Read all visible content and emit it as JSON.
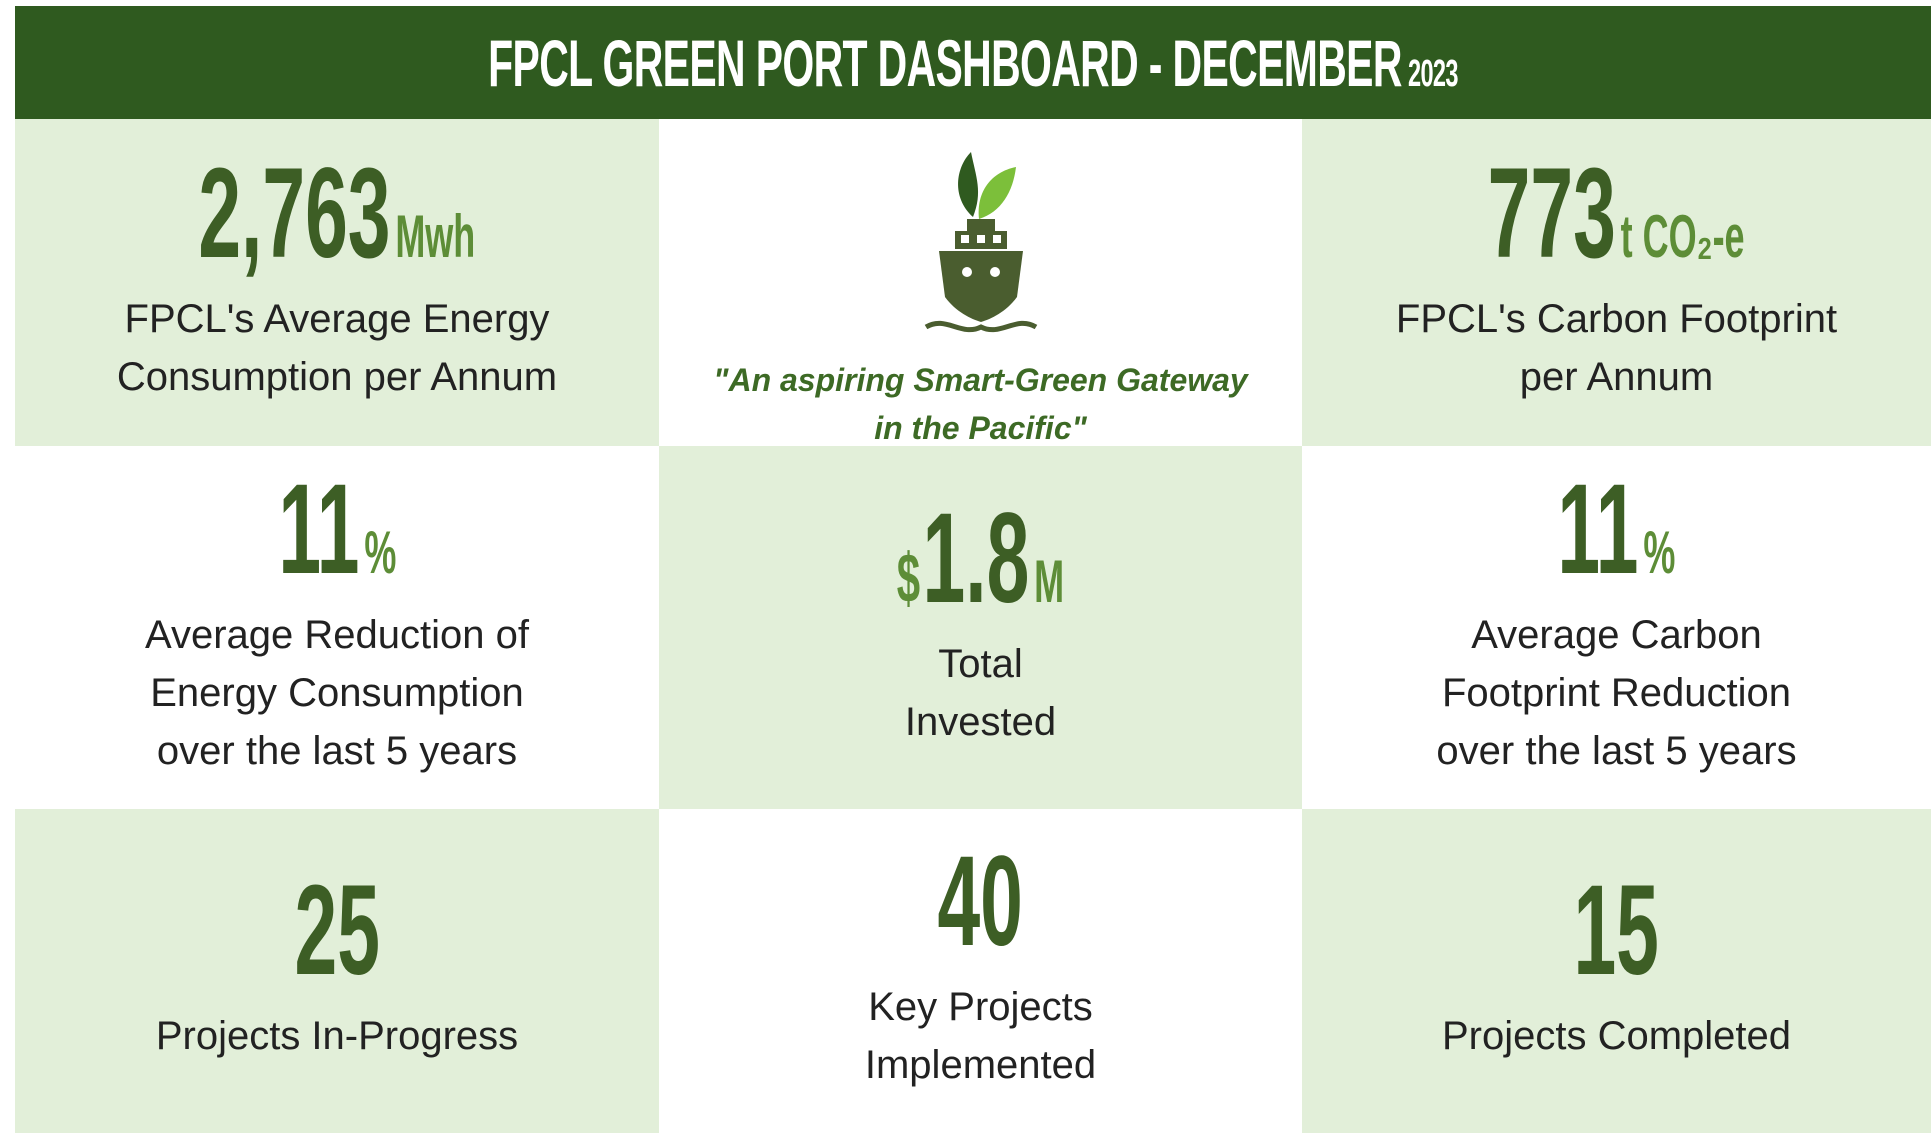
{
  "header": {
    "title": "FPCL GREEN PORT DASHBOARD - DECEMBER",
    "year": "2023"
  },
  "cells": [
    {
      "value": "2,763",
      "unit": "Mwh",
      "label": [
        "FPCL's Average Energy",
        "Consumption per Annum"
      ]
    },
    {
      "tagline": [
        "\"An aspiring Smart-Green Gateway",
        "in the Pacific\""
      ]
    },
    {
      "value": "773",
      "unit": "t CO₂-e",
      "label": [
        "FPCL's Carbon Footprint",
        "per Annum"
      ]
    },
    {
      "value": "11",
      "unit": "%",
      "label": [
        "Average Reduction of",
        "Energy Consumption",
        "over the last 5 years"
      ]
    },
    {
      "prefix": "$",
      "value": "1.8",
      "unit": "M",
      "label": [
        "Total",
        "Invested"
      ]
    },
    {
      "value": "11",
      "unit": "%",
      "label": [
        "Average Carbon",
        "Footprint Reduction",
        "over the last 5 years"
      ]
    },
    {
      "value": "25",
      "label": [
        "Projects In-Progress"
      ]
    },
    {
      "value": "40",
      "label": [
        "Key Projects",
        "Implemented"
      ]
    },
    {
      "value": "15",
      "label": [
        "Projects Completed"
      ]
    }
  ]
}
